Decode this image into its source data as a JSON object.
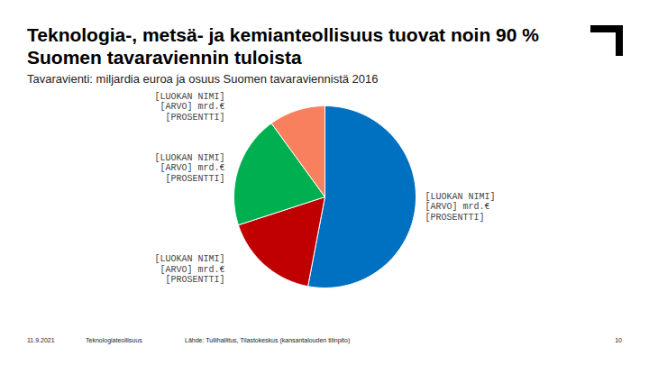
{
  "chart_data": {
    "type": "pie",
    "title": "Teknologia-, metsä- ja kemianteollisuus tuovat noin 90 % Suomen tavaraviennin tuloista",
    "subtitle": "Tavaravienti: miljardia euroa ja osuus Suomen tavaraviennistä 2016",
    "categories": [
      "[LUOKAN NIMI]",
      "[LUOKAN NIMI]",
      "[LUOKAN NIMI]",
      "[LUOKAN NIMI]"
    ],
    "values": [
      53,
      17,
      20,
      10
    ],
    "value_labels": [
      [
        "[ARVO] mrd.€",
        "[PROSENTTI]"
      ],
      [
        "[ARVO] mrd.€",
        "[PROSENTTI]"
      ],
      [
        "[ARVO] mrd.€",
        "[PROSENTTI]"
      ],
      [
        "[ARVO] mrd.€",
        "[PROSENTTI]"
      ]
    ],
    "colors": [
      "#0070c0",
      "#c00000",
      "#00b050",
      "#f8805f"
    ],
    "data_labels": true,
    "tick_labels": false
  },
  "footer": {
    "date": "11.9.2021",
    "organization": "Teknologiateollisuus",
    "source": "Lähde: Tullihallitus, Tilastokeskus (kansantalouden tilinpito)",
    "page": "10"
  }
}
